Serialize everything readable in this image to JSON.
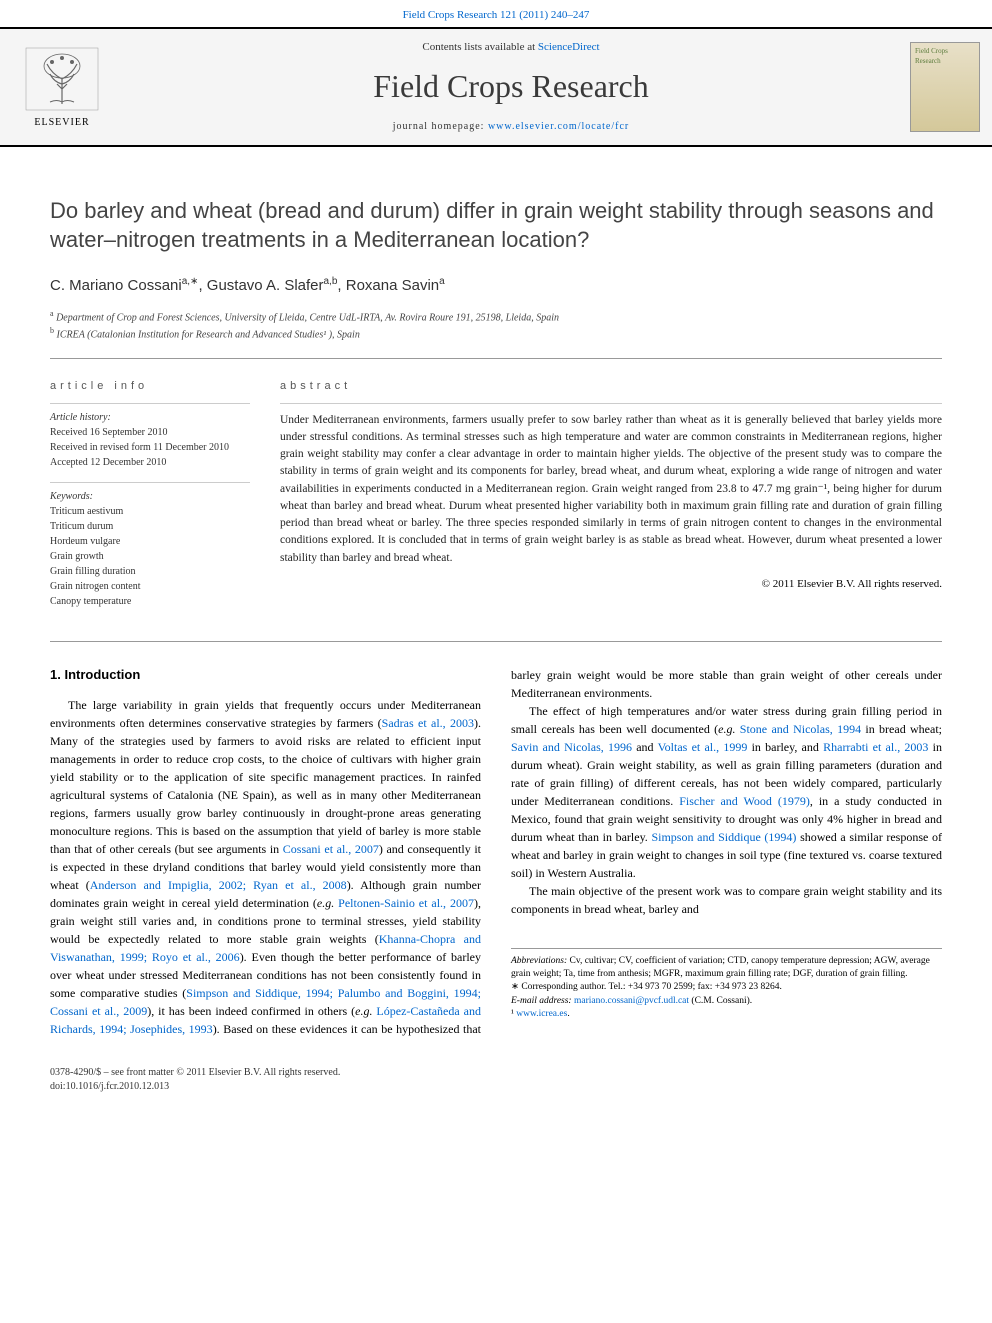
{
  "header": {
    "top_link": "Field Crops Research 121 (2011) 240–247",
    "contents_text": "Contents lists available at ",
    "contents_link": "ScienceDirect",
    "journal_name": "Field Crops Research",
    "homepage_text": "journal homepage: ",
    "homepage_url": "www.elsevier.com/locate/fcr",
    "elsevier_label": "ELSEVIER",
    "cover_text": "Field Crops Research"
  },
  "title": "Do barley and wheat (bread and durum) differ in grain weight stability through seasons and water–nitrogen treatments in a Mediterranean location?",
  "authors_html": "C. Mariano Cossani<sup>a,∗</sup>, Gustavo A. Slafer<sup>a,b</sup>, Roxana Savin<sup>a</sup>",
  "affiliations": {
    "a": "Department of Crop and Forest Sciences, University of Lleida, Centre UdL-IRTA, Av. Rovira Roure 191, 25198, Lleida, Spain",
    "b": "ICREA (Catalonian Institution for Research and Advanced Studies¹ ), Spain"
  },
  "article_info": {
    "header": "article info",
    "history_label": "Article history:",
    "received": "Received 16 September 2010",
    "revised": "Received in revised form 11 December 2010",
    "accepted": "Accepted 12 December 2010",
    "keywords_label": "Keywords:",
    "keywords": [
      "Triticum aestivum",
      "Triticum durum",
      "Hordeum vulgare",
      "Grain growth",
      "Grain filling duration",
      "Grain nitrogen content",
      "Canopy temperature"
    ]
  },
  "abstract": {
    "header": "abstract",
    "text": "Under Mediterranean environments, farmers usually prefer to sow barley rather than wheat as it is generally believed that barley yields more under stressful conditions. As terminal stresses such as high temperature and water are common constraints in Mediterranean regions, higher grain weight stability may confer a clear advantage in order to maintain higher yields. The objective of the present study was to compare the stability in terms of grain weight and its components for barley, bread wheat, and durum wheat, exploring a wide range of nitrogen and water availabilities in experiments conducted in a Mediterranean region. Grain weight ranged from 23.8 to 47.7 mg grain⁻¹, being higher for durum wheat than barley and bread wheat. Durum wheat presented higher variability both in maximum grain filling rate and duration of grain filling period than bread wheat or barley. The three species responded similarly in terms of grain nitrogen content to changes in the environmental conditions explored. It is concluded that in terms of grain weight barley is as stable as bread wheat. However, durum wheat presented a lower stability than barley and bread wheat.",
    "copyright": "© 2011 Elsevier B.V. All rights reserved."
  },
  "intro": {
    "heading": "1. Introduction",
    "p1a": "The large variability in grain yields that frequently occurs under Mediterranean environments often determines conservative strategies by farmers (",
    "p1_ref1": "Sadras et al., 2003",
    "p1b": "). Many of the strategies used by farmers to avoid risks are related to efficient input managements in order to reduce crop costs, to the choice of cultivars with higher grain yield stability or to the application of site specific management practices. In rainfed agricultural systems of Catalonia (NE Spain), as well as in many other Mediterranean regions, farmers usually grow barley continuously in drought-prone areas generating monoculture regions. This is based on the assumption that yield of barley is more stable than that of other cereals (but see arguments in ",
    "p1_ref2": "Cossani et al., 2007",
    "p1c": ") and consequently it is expected in these dryland conditions that barley would yield consistently more than wheat (",
    "p1_ref3": "Anderson and Impiglia, 2002; Ryan et al., 2008",
    "p1d": "). Although grain number dominates grain weight in cereal yield determination (",
    "p1_ref4": "e.g.",
    "p1_ref5": " Peltonen-Sainio et al., 2007",
    "p1e": "), grain weight still varies and, in conditions prone to terminal stresses, yield stability would be expectedly related to more stable grain weights (",
    "p1_ref6": "Khanna-Chopra and Viswanathan, 1999; Royo et al., 2006",
    "p1f": "). Even though the better performance of barley over wheat under stressed Mediterranean conditions has not been consistently found in some comparative studies (",
    "p1_ref7": "Simpson and Siddique, 1994; Palumbo and Boggini, 1994; Cossani et al., 2009",
    "p1g": "), it has been indeed confirmed in others (",
    "p1_ref8": "e.g.",
    "p1_ref9": " López-Castañeda and Richards, 1994; Josephides, 1993",
    "p1h": "). Based on these evidences it can be hypothesized that barley grain weight would be more stable than grain weight of other cereals under Mediterranean environments.",
    "p2a": "The effect of high temperatures and/or water stress during grain filling period in small cereals has been well documented (",
    "p2_ref1": "e.g.",
    "p2_ref2": " Stone and Nicolas, 1994",
    "p2b": " in bread wheat; ",
    "p2_ref3": "Savin and Nicolas, 1996",
    "p2c": " and ",
    "p2_ref4": "Voltas et al., 1999",
    "p2d": " in barley, and ",
    "p2_ref5": "Rharrabti et al., 2003",
    "p2e": " in durum wheat). Grain weight stability, as well as grain filling parameters (duration and rate of grain filling) of different cereals, has not been widely compared, particularly under Mediterranean conditions. ",
    "p2_ref6": "Fischer and Wood (1979)",
    "p2f": ", in a study conducted in Mexico, found that grain weight sensitivity to drought was only 4% higher in bread and durum wheat than in barley. ",
    "p2_ref7": "Simpson and Siddique (1994)",
    "p2g": " showed a similar response of wheat and barley in grain weight to changes in soil type (fine textured vs. coarse textured soil) in Western Australia.",
    "p3": "The main objective of the present work was to compare grain weight stability and its components in bread wheat, barley and"
  },
  "footnotes": {
    "abbrev_label": "Abbreviations:",
    "abbrev_text": " Cv, cultivar; CV, coefficient of variation; CTD, canopy temperature depression; AGW, average grain weight; Ta, time from anthesis; MGFR, maximum grain filling rate; DGF, duration of grain filling.",
    "corresponding": "∗ Corresponding author. Tel.: +34 973 70 2599; fax: +34 973 23 8264.",
    "email_label": "E-mail address:",
    "email": "mariano.cossani@pvcf.udl.cat",
    "email_name": " (C.M. Cossani).",
    "footnote1": "¹ ",
    "footnote1_link": "www.icrea.es",
    "footnote1_post": "."
  },
  "footer": {
    "line1": "0378-4290/$ – see front matter © 2011 Elsevier B.V. All rights reserved.",
    "line2": "doi:",
    "doi": "10.1016/j.fcr.2010.12.013"
  },
  "colors": {
    "link": "#0066cc",
    "text": "#000000",
    "muted": "#444444",
    "divider": "#999999"
  }
}
